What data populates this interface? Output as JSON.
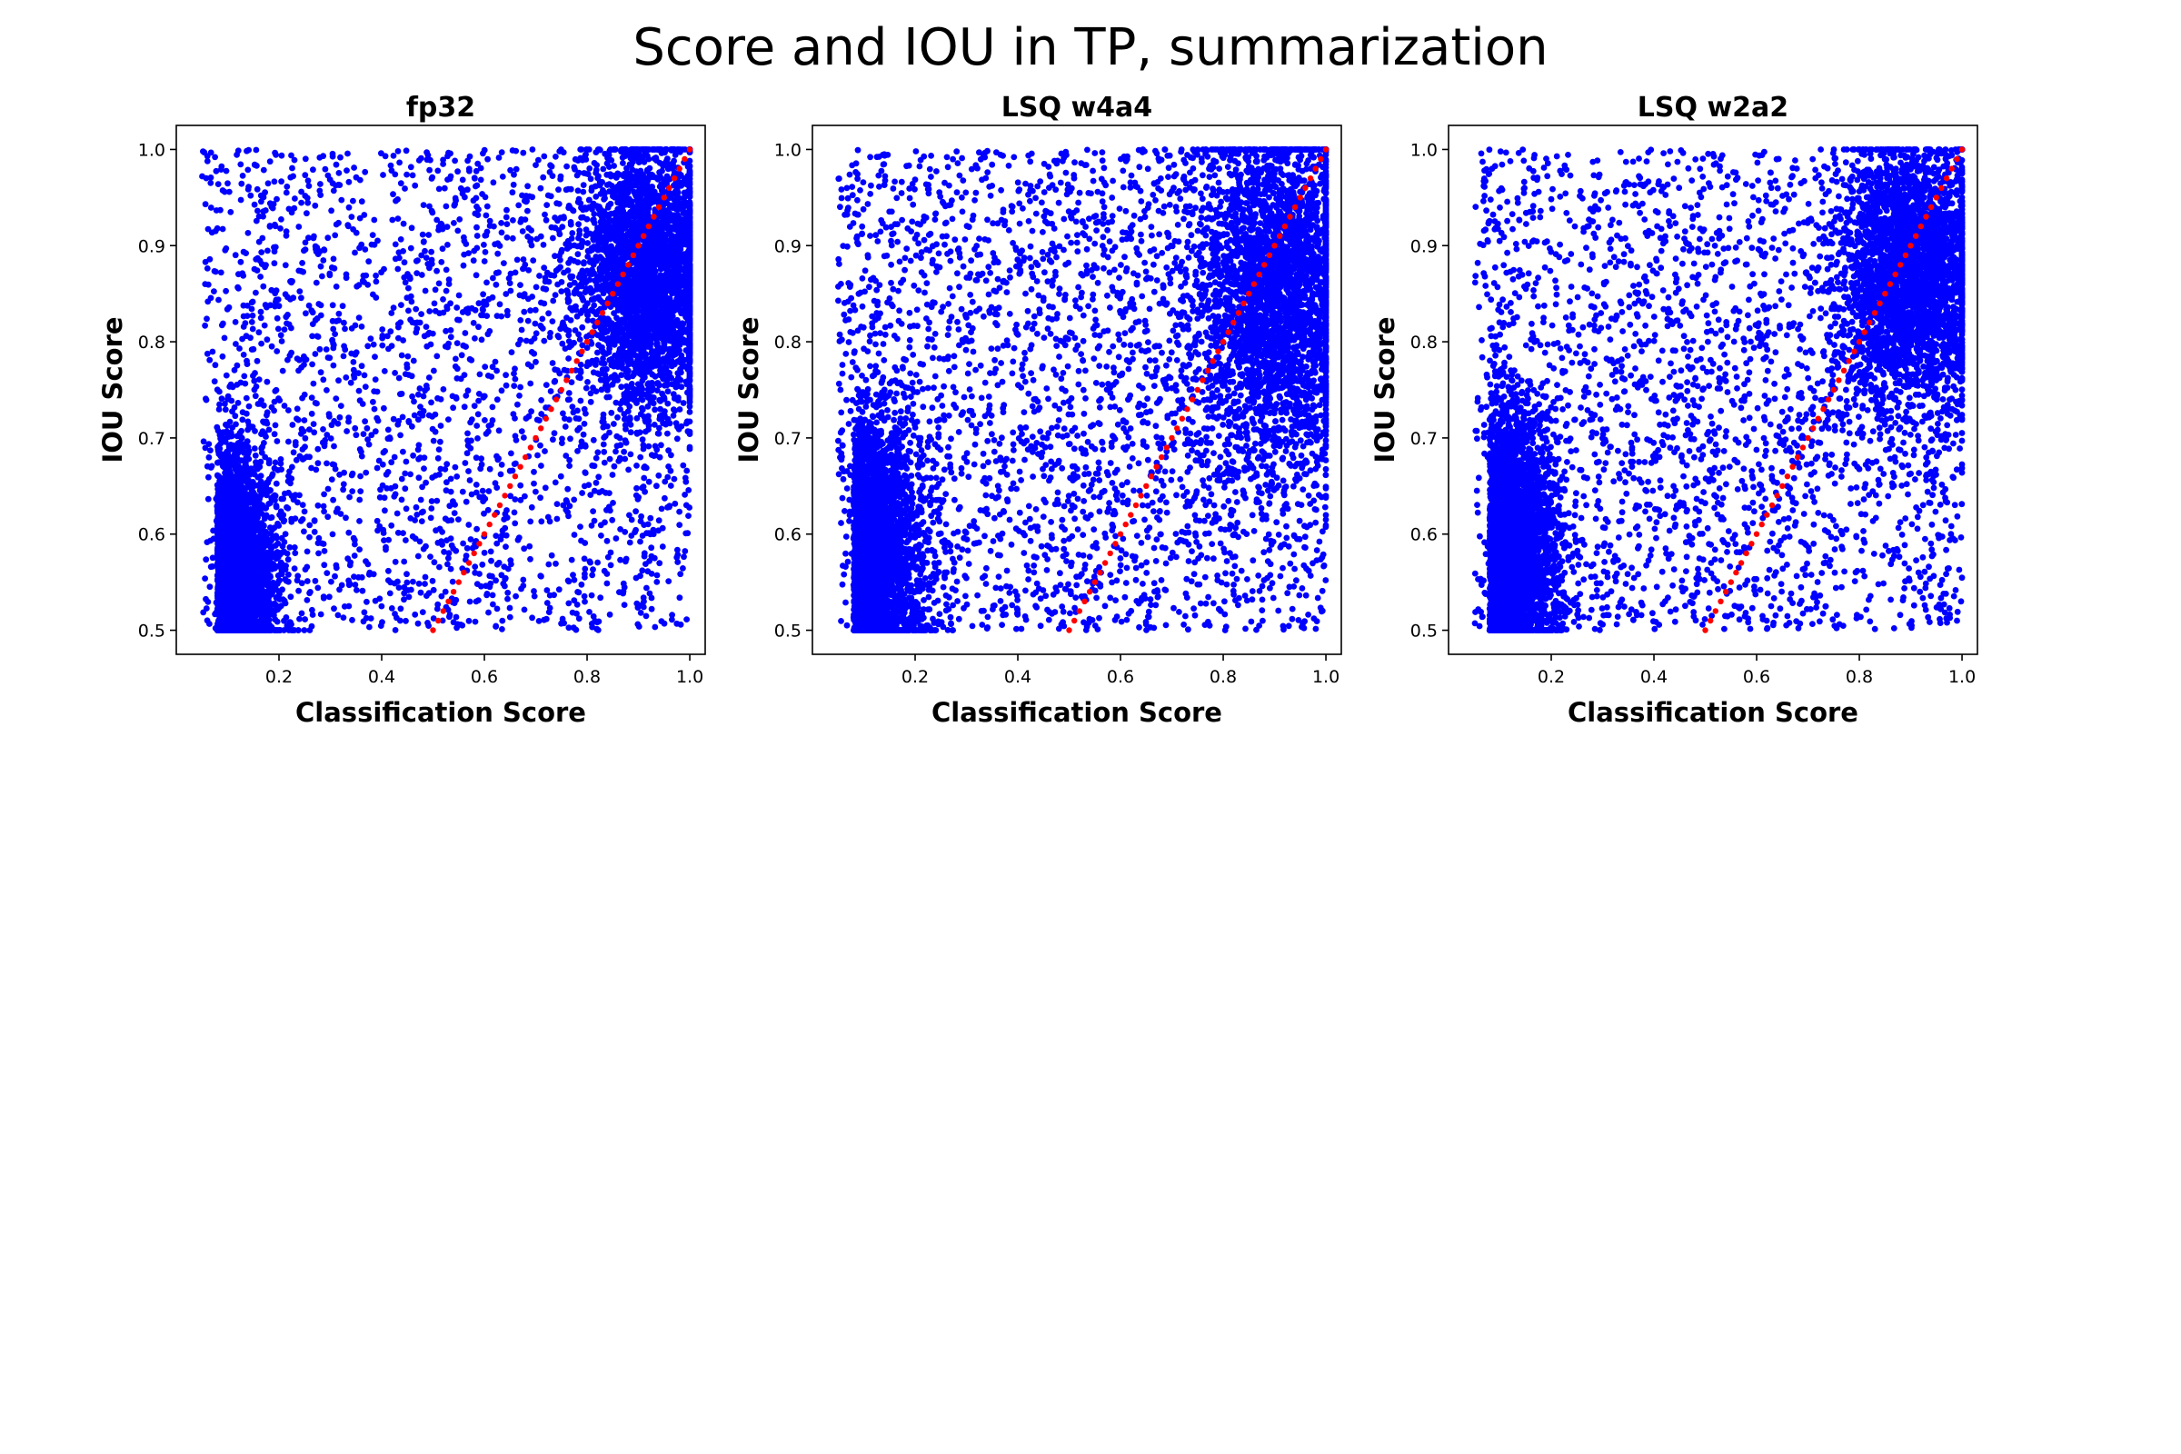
{
  "figure": {
    "suptitle": "Score and IOU in TP, summarization"
  },
  "colors": {
    "points": "#0000ff",
    "reference": "#ff0000",
    "axes": "#000000",
    "background": "#ffffff"
  },
  "chart_data": [
    {
      "type": "scatter",
      "title": "fp32",
      "xlabel": "Classification Score",
      "ylabel": "IOU Score",
      "xlim": [
        0.0,
        1.03
      ],
      "ylim": [
        0.475,
        1.025
      ],
      "xticks": [
        "0.2",
        "0.4",
        "0.6",
        "0.8",
        "1.0"
      ],
      "yticks": [
        "0.5",
        "0.6",
        "0.7",
        "0.8",
        "0.9",
        "1.0"
      ],
      "grid": false,
      "reference_line": {
        "x": [
          0.5,
          1.0
        ],
        "y": [
          0.5,
          1.0
        ],
        "style": "dotted"
      },
      "x_range": [
        0.05,
        1.0
      ],
      "y_range": [
        0.5,
        1.0
      ],
      "clusters": [
        {
          "center": [
            0.08,
            0.56
          ],
          "spread": [
            0.05,
            0.06
          ],
          "share": 0.42
        },
        {
          "center": [
            0.92,
            0.87
          ],
          "spread": [
            0.07,
            0.07
          ],
          "share": 0.33
        },
        {
          "uniform": true,
          "share": 0.25
        }
      ]
    },
    {
      "type": "scatter",
      "title": "LSQ w4a4",
      "xlabel": "Classification Score",
      "ylabel": "IOU Score",
      "xlim": [
        0.0,
        1.03
      ],
      "ylim": [
        0.475,
        1.025
      ],
      "xticks": [
        "0.2",
        "0.4",
        "0.6",
        "0.8",
        "1.0"
      ],
      "yticks": [
        "0.5",
        "0.6",
        "0.7",
        "0.8",
        "0.9",
        "1.0"
      ],
      "grid": false,
      "reference_line": {
        "x": [
          0.5,
          1.0
        ],
        "y": [
          0.5,
          1.0
        ],
        "style": "dotted"
      },
      "x_range": [
        0.05,
        1.0
      ],
      "y_range": [
        0.5,
        1.0
      ],
      "clusters": [
        {
          "center": [
            0.08,
            0.57
          ],
          "spread": [
            0.06,
            0.07
          ],
          "share": 0.38
        },
        {
          "center": [
            0.9,
            0.85
          ],
          "spread": [
            0.08,
            0.09
          ],
          "share": 0.32
        },
        {
          "uniform": true,
          "share": 0.3
        }
      ]
    },
    {
      "type": "scatter",
      "title": "LSQ w2a2",
      "xlabel": "Classification Score",
      "ylabel": "IOU Score",
      "xlim": [
        0.0,
        1.03
      ],
      "ylim": [
        0.475,
        1.025
      ],
      "xticks": [
        "0.2",
        "0.4",
        "0.6",
        "0.8",
        "1.0"
      ],
      "yticks": [
        "0.5",
        "0.6",
        "0.7",
        "0.8",
        "0.9",
        "1.0"
      ],
      "grid": false,
      "reference_line": {
        "x": [
          0.5,
          1.0
        ],
        "y": [
          0.5,
          1.0
        ],
        "style": "dotted"
      },
      "x_range": [
        0.05,
        1.0
      ],
      "y_range": [
        0.5,
        1.0
      ],
      "clusters": [
        {
          "center": [
            0.08,
            0.58
          ],
          "spread": [
            0.06,
            0.07
          ],
          "share": 0.4
        },
        {
          "center": [
            0.9,
            0.87
          ],
          "spread": [
            0.07,
            0.07
          ],
          "share": 0.32
        },
        {
          "uniform": true,
          "share": 0.28
        }
      ]
    }
  ]
}
